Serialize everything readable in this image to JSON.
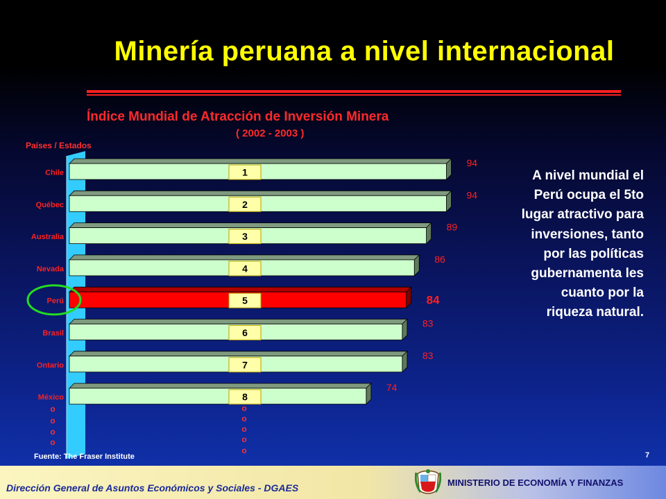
{
  "slide": {
    "title": "Minería peruana a nivel internacional",
    "page_number": "7",
    "note": "A nivel mundial el Perú ocupa el 5to lugar atractivo para inversiones, tanto por las políticas gubernamenta les cuanto por la riqueza natural.",
    "source": "Fuente: The Fraser Institute",
    "footer_left": "Dirección General de Asuntos Económicos y Sociales - DGAES",
    "footer_right": "MINISTERIO DE ECONOMÍA Y FINANZAS",
    "emblem_icon": "peru-coat-of-arms-icon"
  },
  "chart_data": {
    "type": "bar",
    "orientation": "horizontal",
    "title": "Índice Mundial de Atracción de Inversión Minera",
    "subtitle": "( 2002 - 2003 )",
    "ylabel": "Países / Estados",
    "categories": [
      "Chile",
      "Québec",
      "Australia",
      "Nevada",
      "Perú",
      "Brasil",
      "Ontario",
      "México"
    ],
    "values": [
      94,
      94,
      89,
      86,
      84,
      83,
      83,
      74
    ],
    "ranks": [
      "1",
      "2",
      "3",
      "4",
      "5",
      "6",
      "7",
      "8"
    ],
    "highlight": "Perú",
    "colors": {
      "bar": "#ccffcc",
      "highlight": "#ff0000",
      "value_label": "#ff2020",
      "category_label": "#ff2020",
      "rank_box": "#ffffaa",
      "axis_wall": "#33ccff",
      "highlight_circle": "#22dd22"
    },
    "continuation_marks": "o"
  }
}
